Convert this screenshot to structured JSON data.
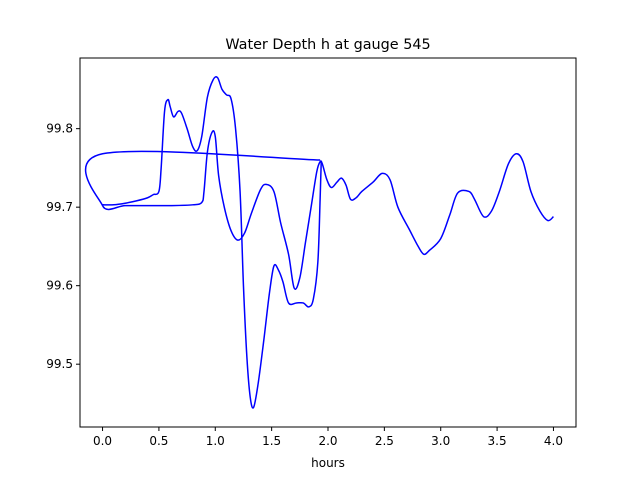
{
  "chart_data": {
    "type": "line",
    "title": "Water Depth h at gauge 545",
    "xlabel": "hours",
    "ylabel": "",
    "xlim": [
      -0.2,
      4.2
    ],
    "ylim": [
      99.42,
      99.89
    ],
    "xticks": [
      0.0,
      0.5,
      1.0,
      1.5,
      2.0,
      2.5,
      3.0,
      3.5,
      4.0
    ],
    "xtick_labels": [
      "0.0",
      "0.5",
      "1.0",
      "1.5",
      "2.0",
      "2.5",
      "3.0",
      "3.5",
      "4.0"
    ],
    "yticks": [
      99.5,
      99.6,
      99.7,
      99.8
    ],
    "ytick_labels": [
      "99.5",
      "99.6",
      "99.7",
      "99.8"
    ],
    "grid": false,
    "series": [
      {
        "color": "#0000ff",
        "points": [
          [
            1.93,
            99.76
          ],
          [
            0.0,
            99.768
          ],
          [
            0.0,
            99.702
          ],
          [
            0.2,
            99.702
          ],
          [
            0.4,
            99.702
          ],
          [
            0.6,
            99.702
          ],
          [
            0.8,
            99.703
          ],
          [
            0.88,
            99.706
          ],
          [
            0.9,
            99.72
          ],
          [
            0.93,
            99.77
          ],
          [
            0.97,
            99.795
          ],
          [
            1.0,
            99.79
          ],
          [
            1.03,
            99.74
          ],
          [
            1.08,
            99.7
          ],
          [
            1.14,
            99.67
          ],
          [
            1.2,
            99.658
          ],
          [
            1.26,
            99.667
          ],
          [
            1.32,
            99.692
          ],
          [
            1.4,
            99.722
          ],
          [
            1.45,
            99.729
          ],
          [
            1.52,
            99.72
          ],
          [
            1.58,
            99.68
          ],
          [
            1.65,
            99.64
          ],
          [
            1.7,
            99.597
          ],
          [
            1.75,
            99.61
          ],
          [
            1.8,
            99.655
          ],
          [
            1.85,
            99.7
          ],
          [
            1.9,
            99.745
          ],
          [
            1.93,
            99.758
          ],
          [
            1.95,
            99.755
          ],
          [
            1.99,
            99.735
          ],
          [
            2.03,
            99.725
          ],
          [
            2.08,
            99.732
          ],
          [
            2.12,
            99.737
          ],
          [
            2.16,
            99.728
          ],
          [
            2.2,
            99.71
          ],
          [
            2.25,
            99.712
          ],
          [
            2.3,
            99.72
          ],
          [
            2.4,
            99.732
          ],
          [
            2.48,
            99.743
          ],
          [
            2.55,
            99.735
          ],
          [
            2.62,
            99.7
          ],
          [
            2.72,
            99.672
          ],
          [
            2.8,
            99.65
          ],
          [
            2.85,
            99.64
          ],
          [
            2.9,
            99.645
          ],
          [
            3.0,
            99.66
          ],
          [
            3.08,
            99.69
          ],
          [
            3.15,
            99.718
          ],
          [
            3.25,
            99.72
          ],
          [
            3.3,
            99.71
          ],
          [
            3.38,
            99.688
          ],
          [
            3.45,
            99.695
          ],
          [
            3.52,
            99.72
          ],
          [
            3.6,
            99.755
          ],
          [
            3.67,
            99.768
          ],
          [
            3.73,
            99.758
          ],
          [
            3.8,
            99.72
          ],
          [
            3.88,
            99.695
          ],
          [
            3.95,
            99.683
          ],
          [
            4.0,
            99.688
          ]
        ]
      },
      {
        "color": "#0000ff",
        "points": [
          [
            0.0,
            99.703
          ],
          [
            0.1,
            99.703
          ],
          [
            0.2,
            99.705
          ],
          [
            0.3,
            99.708
          ],
          [
            0.4,
            99.712
          ],
          [
            0.45,
            99.716
          ],
          [
            0.5,
            99.72
          ],
          [
            0.52,
            99.75
          ],
          [
            0.55,
            99.822
          ],
          [
            0.58,
            99.837
          ],
          [
            0.6,
            99.828
          ],
          [
            0.63,
            99.815
          ],
          [
            0.67,
            99.822
          ],
          [
            0.7,
            99.82
          ],
          [
            0.75,
            99.8
          ],
          [
            0.8,
            99.777
          ],
          [
            0.84,
            99.772
          ],
          [
            0.88,
            99.79
          ],
          [
            0.93,
            99.84
          ],
          [
            0.98,
            99.862
          ],
          [
            1.02,
            99.865
          ],
          [
            1.06,
            99.85
          ],
          [
            1.1,
            99.843
          ],
          [
            1.14,
            99.838
          ],
          [
            1.18,
            99.8
          ],
          [
            1.22,
            99.72
          ],
          [
            1.25,
            99.6
          ],
          [
            1.28,
            99.51
          ],
          [
            1.31,
            99.458
          ],
          [
            1.34,
            99.445
          ],
          [
            1.38,
            99.475
          ],
          [
            1.43,
            99.53
          ],
          [
            1.48,
            99.59
          ],
          [
            1.52,
            99.625
          ],
          [
            1.56,
            99.62
          ],
          [
            1.6,
            99.605
          ],
          [
            1.65,
            99.578
          ],
          [
            1.72,
            99.578
          ],
          [
            1.78,
            99.578
          ],
          [
            1.83,
            99.573
          ],
          [
            1.87,
            99.583
          ],
          [
            1.91,
            99.63
          ],
          [
            1.93,
            99.71
          ],
          [
            1.94,
            99.758
          ]
        ]
      }
    ]
  }
}
